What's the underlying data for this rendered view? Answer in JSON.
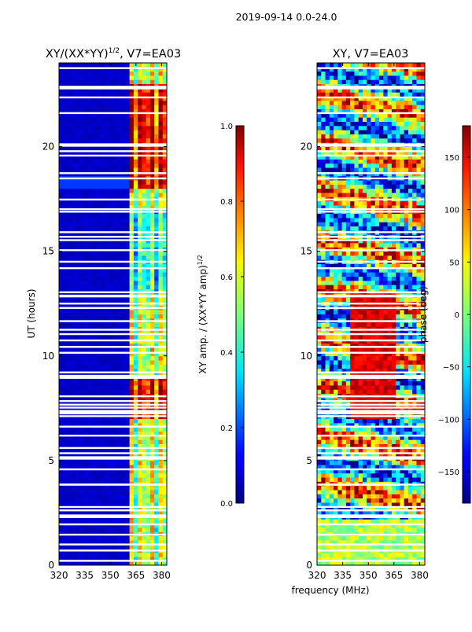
{
  "chart_data": [
    {
      "type": "heatmap",
      "suptitle": "2019-09-14 0.0-24.0",
      "title": "XY/(XX*YY)",
      "title_superscript": "1/2",
      "title_suffix": ", V7=EA03",
      "xlabel": "",
      "ylabel": "UT (hours)",
      "xlim": [
        320,
        383
      ],
      "ylim": [
        0,
        24
      ],
      "xticks": [
        320,
        335,
        350,
        365,
        380
      ],
      "yticks": [
        0,
        5,
        10,
        15,
        20
      ],
      "colorbar": {
        "label": "XY amp. / (XX*YY amp)",
        "label_superscript": "1/2",
        "range": [
          0.0,
          1.0
        ],
        "ticks": [
          "0.0",
          "0.2",
          "0.4",
          "0.6",
          "0.8",
          "1.0"
        ]
      },
      "colormap": "jet"
    },
    {
      "type": "heatmap",
      "title": "XY, V7=EA03",
      "xlabel": "frequency (MHz)",
      "ylabel": "",
      "xlim": [
        320,
        383
      ],
      "ylim": [
        0,
        24
      ],
      "xticks": [
        320,
        335,
        350,
        365,
        380
      ],
      "yticks": [
        0,
        5,
        10,
        15,
        20
      ],
      "colorbar": {
        "label": "phase (deg)",
        "range": [
          -180,
          180
        ],
        "ticks": [
          "150",
          "100",
          "50",
          "0",
          "−50",
          "−100",
          "−150"
        ]
      },
      "colormap": "jet"
    }
  ]
}
